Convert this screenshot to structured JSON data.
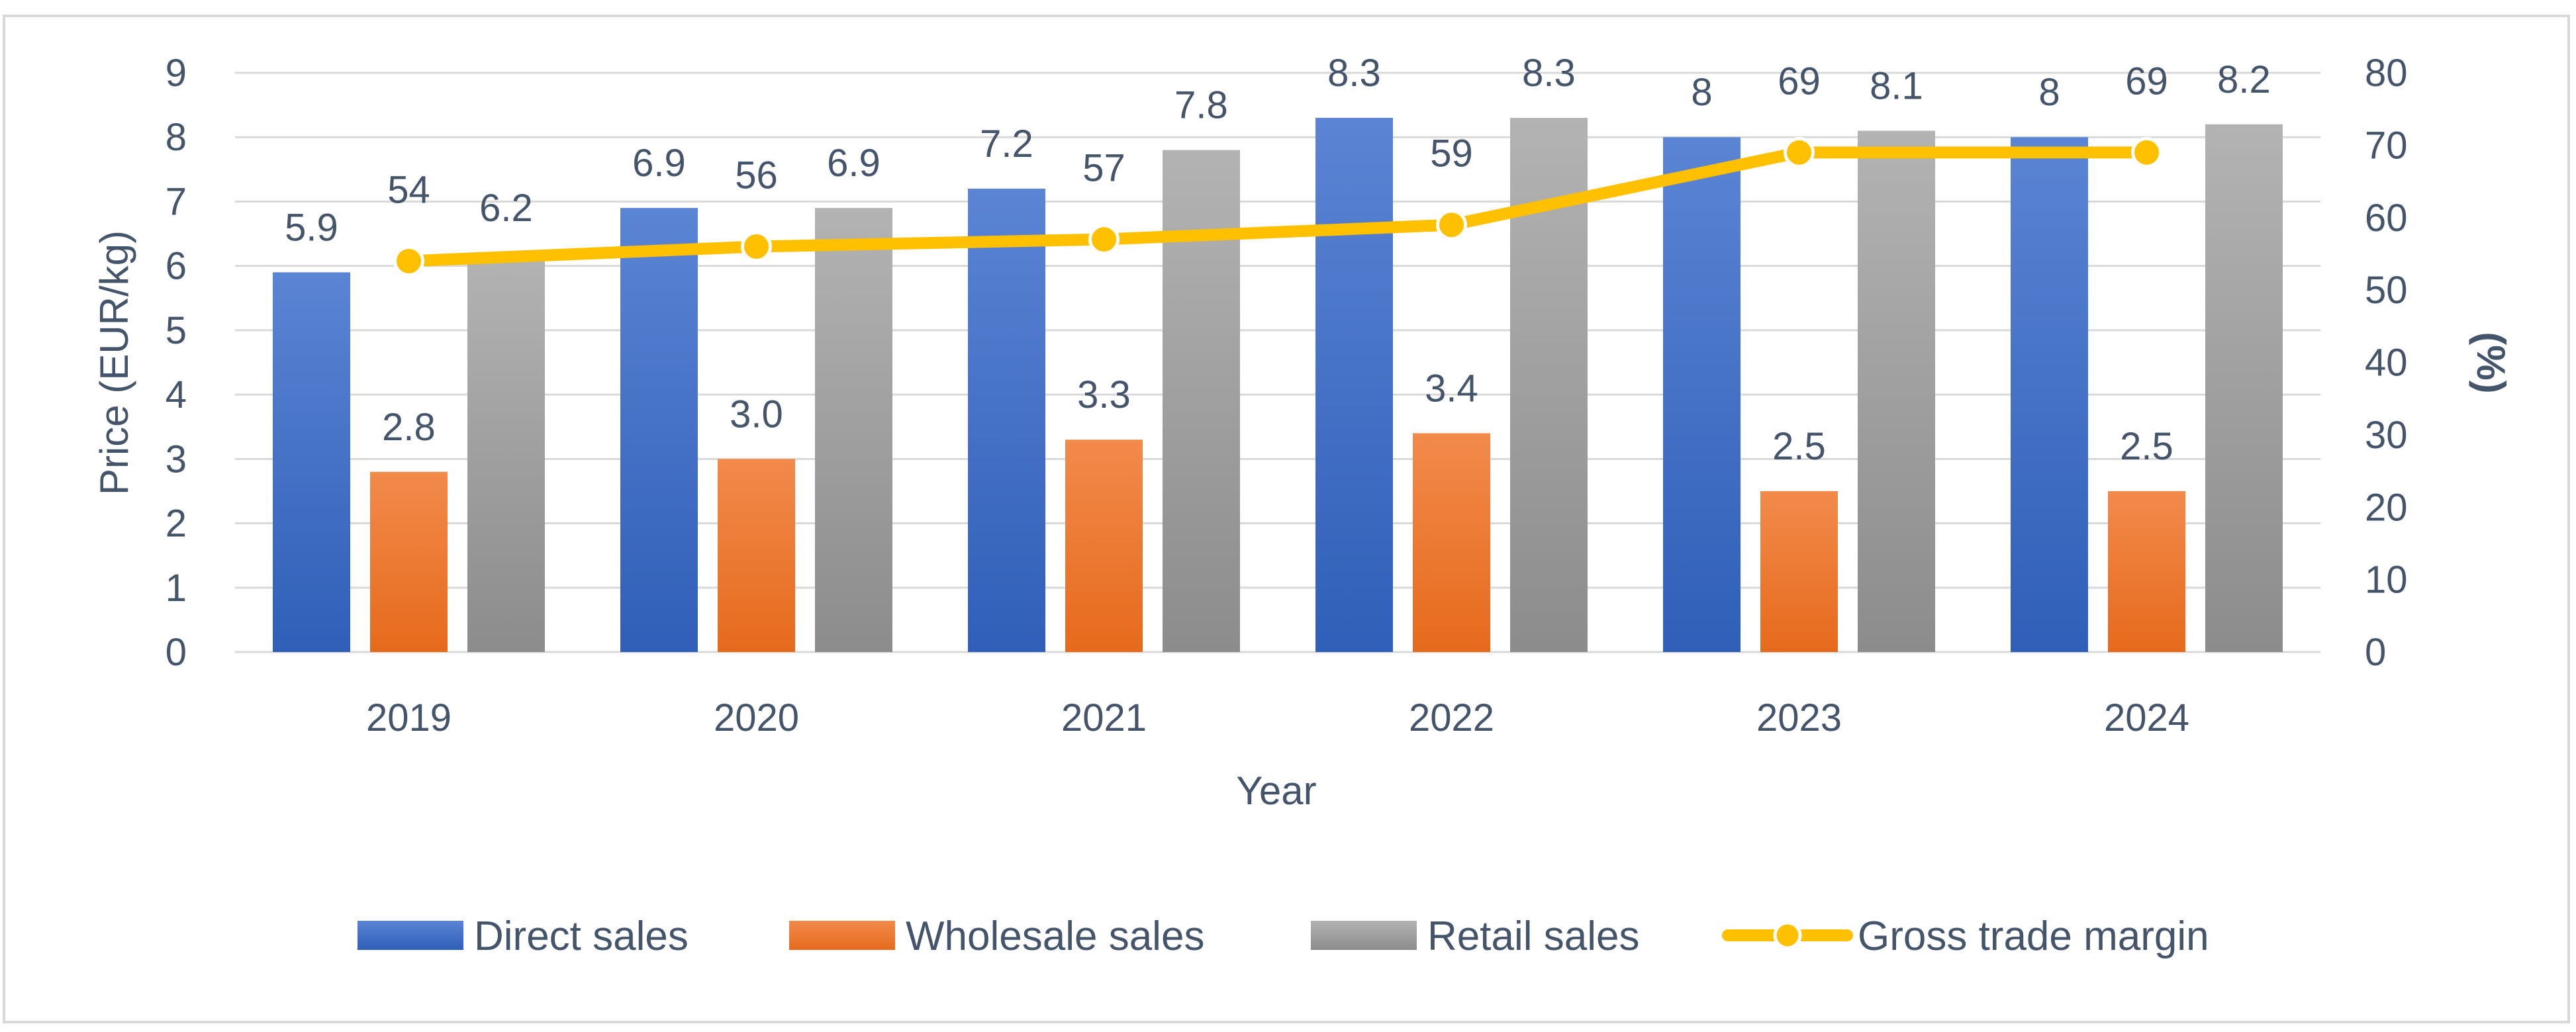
{
  "chart_data": {
    "type": "bar",
    "title": "",
    "categories": [
      "2019",
      "2020",
      "2021",
      "2022",
      "2023",
      "2024"
    ],
    "xlabel": "Year",
    "ylabel": "Price (EUR/kg)",
    "y2label": "(%)",
    "ylim": [
      0,
      9
    ],
    "y2lim": [
      0,
      80
    ],
    "yticks": [
      "0",
      "1",
      "2",
      "3",
      "4",
      "5",
      "6",
      "7",
      "8",
      "9"
    ],
    "y2ticks": [
      "0",
      "10",
      "20",
      "30",
      "40",
      "50",
      "60",
      "70",
      "80"
    ],
    "grid": true,
    "legend_position": "bottom",
    "series": [
      {
        "name": "Direct sales",
        "type": "bar",
        "axis": "left",
        "color": "#4472c4",
        "values": [
          5.9,
          6.9,
          7.2,
          8.3,
          8.0,
          8.0
        ],
        "labels": [
          "5.9",
          "6.9",
          "7.2",
          "8.3",
          "8",
          "8"
        ]
      },
      {
        "name": "Wholesale sales",
        "type": "bar",
        "axis": "left",
        "color": "#ed7d31",
        "values": [
          2.8,
          3.0,
          3.3,
          3.4,
          2.5,
          2.5
        ],
        "labels": [
          "2.8",
          "3.0",
          "3.3",
          "3.4",
          "2.5",
          "2.5"
        ]
      },
      {
        "name": "Retail sales",
        "type": "bar",
        "axis": "left",
        "color": "#a5a5a5",
        "values": [
          6.2,
          6.9,
          7.8,
          8.3,
          8.1,
          8.2
        ],
        "labels": [
          "6.2",
          "6.9",
          "7.8",
          "8.3",
          "8.1",
          "8.2"
        ]
      },
      {
        "name": "Gross trade margin",
        "type": "line",
        "axis": "right",
        "color": "#ffc000",
        "values": [
          54,
          56,
          57,
          59,
          69,
          69
        ],
        "labels": [
          "54",
          "56",
          "57",
          "59",
          "69",
          "69"
        ]
      }
    ]
  }
}
